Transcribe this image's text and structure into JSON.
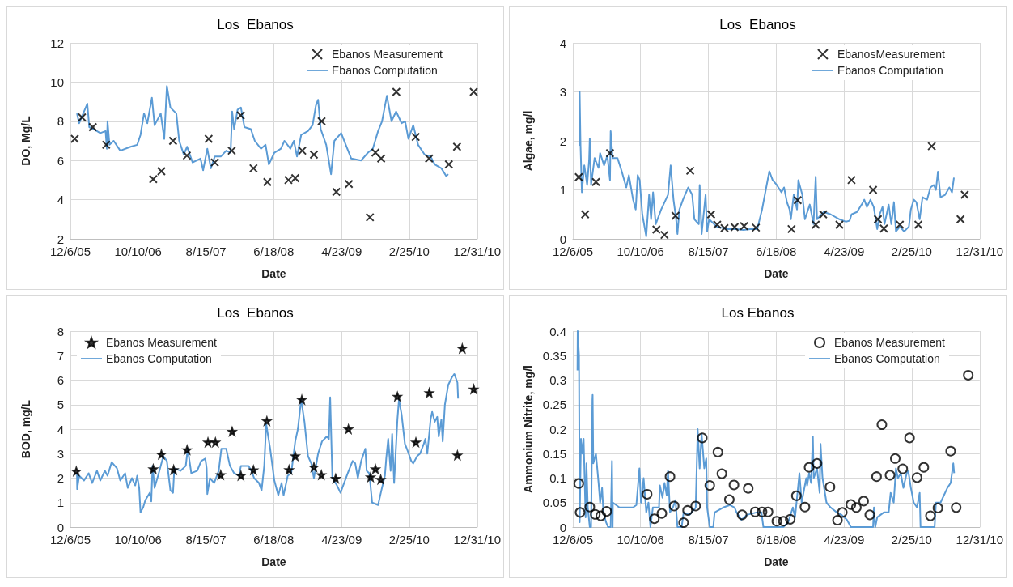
{
  "chart_data": [
    {
      "type": "line",
      "title": "Los  Ebanos",
      "xlabel": "Date",
      "ylabel": "DO, Mg/L",
      "xlim": [
        "2005-12-06",
        "2010-12-31"
      ],
      "xticks": [
        {
          "value": "2005-12-06",
          "label": "12/6/05"
        },
        {
          "value": "2006-10-10",
          "label": "10/10/06"
        },
        {
          "value": "2007-08-15",
          "label": "8/15/07"
        },
        {
          "value": "2008-06-18",
          "label": "6/18/08"
        },
        {
          "value": "2009-04-23",
          "label": "4/23/09"
        },
        {
          "value": "2010-02-25",
          "label": "2/25/10"
        },
        {
          "value": "2010-12-31",
          "label": "12/31/10"
        }
      ],
      "ylim": [
        2,
        12
      ],
      "yticks": [
        2,
        4,
        6,
        8,
        10,
        12
      ],
      "grid": true,
      "legend": "top right",
      "series": [
        {
          "name": "Ebanos Measurement",
          "type": "scatter",
          "marker": "cross",
          "color": "#000000",
          "x": [
            "2005-12-26",
            "2006-01-28",
            "2006-03-18",
            "2006-05-18",
            "2006-12-18",
            "2007-01-24",
            "2007-03-18",
            "2007-05-20",
            "2007-08-27",
            "2007-09-24",
            "2007-12-10",
            "2008-01-20",
            "2008-03-18",
            "2008-05-20",
            "2008-08-24",
            "2008-09-24",
            "2008-10-26",
            "2008-12-18",
            "2009-01-22",
            "2009-03-30",
            "2009-05-26",
            "2009-08-30",
            "2009-09-24",
            "2009-10-20",
            "2009-12-28",
            "2010-03-26",
            "2010-05-26",
            "2010-08-24",
            "2010-09-30",
            "2010-12-15"
          ],
          "values": [
            7.1,
            8.2,
            7.7,
            6.8,
            5.05,
            5.45,
            7.0,
            6.25,
            7.1,
            5.9,
            6.5,
            8.3,
            5.6,
            4.9,
            5.0,
            5.1,
            6.5,
            6.3,
            8.0,
            4.4,
            4.8,
            3.1,
            6.4,
            6.1,
            9.5,
            7.2,
            6.1,
            5.8,
            6.7,
            9.5
          ]
        },
        {
          "name": "Ebanos Computation",
          "type": "line",
          "marker": "none",
          "color": "#5b9bd5",
          "x": [
            "2006-01-05",
            "2006-01-15",
            "2006-02-21",
            "2006-03-02",
            "2006-03-21",
            "2006-04-21",
            "2006-05-15",
            "2006-05-21",
            "2006-05-24",
            "2006-06-02",
            "2006-06-21",
            "2006-07-21",
            "2006-09-06",
            "2006-10-06",
            "2006-10-21",
            "2006-11-06",
            "2006-11-21",
            "2006-12-12",
            "2006-12-24",
            "2007-01-21",
            "2007-02-06",
            "2007-02-18",
            "2007-03-06",
            "2007-04-02",
            "2007-04-15",
            "2007-05-06",
            "2007-05-21",
            "2007-06-15",
            "2007-07-21",
            "2007-08-02",
            "2007-08-21",
            "2007-09-06",
            "2007-09-24",
            "2007-10-21",
            "2007-11-15",
            "2007-12-05",
            "2007-12-12",
            "2007-12-21",
            "2008-01-06",
            "2008-01-21",
            "2008-02-06",
            "2008-03-06",
            "2008-03-24",
            "2008-04-21",
            "2008-05-12",
            "2008-05-27",
            "2008-06-21",
            "2008-07-21",
            "2008-08-06",
            "2008-09-02",
            "2008-09-18",
            "2008-10-02",
            "2008-10-21",
            "2008-11-21",
            "2008-12-12",
            "2008-12-27",
            "2009-01-06",
            "2009-01-18",
            "2009-02-12",
            "2009-03-06",
            "2009-03-21",
            "2009-04-21",
            "2009-05-12",
            "2009-06-06",
            "2009-07-21",
            "2009-08-21",
            "2009-09-12",
            "2009-10-06",
            "2009-10-24",
            "2009-11-15",
            "2009-12-06",
            "2009-12-27",
            "2010-01-21",
            "2010-02-06",
            "2010-02-21",
            "2010-03-15",
            "2010-04-06",
            "2010-05-06",
            "2010-06-02",
            "2010-06-21",
            "2010-07-21",
            "2010-08-12",
            "2010-08-21"
          ],
          "values": [
            8.4,
            7.9,
            8.9,
            7.7,
            7.6,
            7.4,
            7.5,
            6.6,
            8.0,
            6.8,
            7.0,
            6.5,
            6.7,
            6.8,
            7.3,
            8.4,
            7.9,
            9.2,
            7.8,
            8.4,
            7.1,
            9.8,
            8.7,
            8.4,
            7.0,
            6.3,
            6.7,
            5.9,
            6.1,
            5.5,
            6.6,
            5.6,
            6.2,
            6.2,
            6.5,
            6.4,
            8.5,
            7.6,
            8.6,
            8.7,
            7.7,
            7.6,
            7.0,
            6.6,
            6.8,
            5.8,
            6.4,
            6.6,
            7.0,
            6.6,
            7.0,
            6.2,
            7.3,
            7.5,
            7.8,
            8.8,
            9.1,
            7.6,
            6.8,
            5.3,
            7.0,
            7.4,
            6.8,
            6.1,
            6.0,
            6.4,
            6.6,
            7.5,
            8.0,
            9.3,
            8.0,
            8.5,
            7.9,
            8.0,
            7.1,
            7.8,
            6.8,
            6.3,
            6.2,
            5.8,
            5.6,
            5.2,
            5.3
          ]
        }
      ]
    },
    {
      "type": "line",
      "title": "Los  Ebanos",
      "xlabel": "Date",
      "ylabel": "Algae, mg/l",
      "xlim": [
        "2005-12-06",
        "2010-12-31"
      ],
      "xticks": [
        {
          "value": "2005-12-06",
          "label": "12/6/05"
        },
        {
          "value": "2006-10-10",
          "label": "10/10/06"
        },
        {
          "value": "2007-08-15",
          "label": "8/15/07"
        },
        {
          "value": "2008-06-18",
          "label": "6/18/08"
        },
        {
          "value": "2009-04-23",
          "label": "4/23/09"
        },
        {
          "value": "2010-02-25",
          "label": "2/25/10"
        },
        {
          "value": "2010-12-31",
          "label": "12/31/10"
        }
      ],
      "ylim": [
        0,
        4
      ],
      "yticks": [
        0,
        1,
        2,
        3,
        4
      ],
      "grid": true,
      "legend": "top right",
      "series": [
        {
          "name": "EbanosMeasurement",
          "type": "scatter",
          "marker": "cross",
          "color": "#000000",
          "x": [
            "2006-01-02",
            "2006-01-31",
            "2006-03-21",
            "2006-05-24",
            "2006-12-21",
            "2007-01-27",
            "2007-03-18",
            "2007-05-24",
            "2007-08-27",
            "2007-09-24",
            "2007-10-27",
            "2007-12-12",
            "2008-01-24",
            "2008-03-18",
            "2008-08-27",
            "2008-09-24",
            "2008-12-15",
            "2009-01-18",
            "2009-04-02",
            "2009-05-27",
            "2009-09-02",
            "2009-09-24",
            "2009-10-21",
            "2010-01-02",
            "2010-03-27",
            "2010-05-27",
            "2010-10-05",
            "2010-10-24"
          ],
          "values": [
            1.26,
            0.5,
            1.16,
            1.75,
            0.19,
            0.08,
            0.47,
            1.39,
            0.5,
            0.29,
            0.22,
            0.24,
            0.26,
            0.23,
            0.2,
            0.79,
            0.29,
            0.5,
            0.29,
            1.2,
            1.0,
            0.4,
            0.21,
            0.29,
            0.29,
            1.89,
            0.4,
            0.9
          ]
        },
        {
          "name": "Ebanos Computation",
          "type": "line",
          "marker": "none",
          "color": "#5b9bd5",
          "x": [
            "2006-01-05",
            "2006-01-06",
            "2006-01-10",
            "2006-01-16",
            "2006-01-27",
            "2006-02-09",
            "2006-02-18",
            "2006-02-21",
            "2006-02-27",
            "2006-03-15",
            "2006-04-02",
            "2006-04-09",
            "2006-04-27",
            "2006-05-12",
            "2006-05-24",
            "2006-05-27",
            "2006-06-05",
            "2006-06-27",
            "2006-07-15",
            "2006-08-06",
            "2006-08-18",
            "2006-09-06",
            "2006-09-18",
            "2006-09-27",
            "2006-10-06",
            "2006-10-18",
            "2006-11-05",
            "2006-11-18",
            "2006-11-27",
            "2006-12-06",
            "2006-12-18",
            "2007-01-12",
            "2007-02-12",
            "2007-02-24",
            "2007-03-09",
            "2007-03-21",
            "2007-03-27",
            "2007-04-05",
            "2007-04-21",
            "2007-05-15",
            "2007-06-02",
            "2007-06-12",
            "2007-07-02",
            "2007-07-06",
            "2007-07-15",
            "2007-08-02",
            "2007-08-09",
            "2007-08-18",
            "2007-09-21",
            "2007-11-06",
            "2007-12-21",
            "2008-01-21",
            "2008-02-21",
            "2008-03-24",
            "2008-04-15",
            "2008-05-06",
            "2008-05-18",
            "2008-06-02",
            "2008-06-21",
            "2008-07-12",
            "2008-07-24",
            "2008-08-06",
            "2008-08-18",
            "2008-08-24",
            "2008-09-06",
            "2008-09-21",
            "2008-09-27",
            "2008-10-15",
            "2008-10-27",
            "2008-11-18",
            "2008-12-05",
            "2008-12-15",
            "2008-12-21",
            "2009-01-21",
            "2009-02-21",
            "2009-04-02",
            "2009-05-02",
            "2009-05-18",
            "2009-05-27",
            "2009-06-21",
            "2009-07-12",
            "2009-07-24",
            "2009-08-05",
            "2009-08-21",
            "2009-09-05",
            "2009-09-21",
            "2009-10-02",
            "2009-10-15",
            "2009-10-24",
            "2009-11-12",
            "2009-11-24",
            "2009-12-06",
            "2009-12-15",
            "2010-01-02",
            "2010-01-21",
            "2010-02-12",
            "2010-02-21",
            "2010-03-06",
            "2010-03-18",
            "2010-04-02",
            "2010-04-15",
            "2010-05-06",
            "2010-05-21",
            "2010-06-05",
            "2010-06-15",
            "2010-06-24",
            "2010-07-06",
            "2010-07-27",
            "2010-08-15",
            "2010-08-27",
            "2010-09-05"
          ],
          "values": [
            1.9,
            3.0,
            1.9,
            0.95,
            1.5,
            1.1,
            1.6,
            2.05,
            1.1,
            1.65,
            1.45,
            1.75,
            1.5,
            1.7,
            1.2,
            2.2,
            1.65,
            1.65,
            1.4,
            1.05,
            1.3,
            0.8,
            0.6,
            1.3,
            1.2,
            0.5,
            0.05,
            0.9,
            0.4,
            0.95,
            0.3,
            0.6,
            0.9,
            1.5,
            0.8,
            0.4,
            0.1,
            0.6,
            0.8,
            1.05,
            0.9,
            0.4,
            0.3,
            1.1,
            0.1,
            0.9,
            0.15,
            0.4,
            0.25,
            0.2,
            0.2,
            0.18,
            0.2,
            0.2,
            0.6,
            1.1,
            1.38,
            1.2,
            1.1,
            0.95,
            1.05,
            0.75,
            0.6,
            0.4,
            0.9,
            0.6,
            1.2,
            0.9,
            0.4,
            0.7,
            0.3,
            1.27,
            0.4,
            0.55,
            0.5,
            0.4,
            0.35,
            0.37,
            0.5,
            0.55,
            0.7,
            0.8,
            0.65,
            0.8,
            0.65,
            0.2,
            0.5,
            0.65,
            0.3,
            0.7,
            0.3,
            0.75,
            0.15,
            0.25,
            0.15,
            0.25,
            0.6,
            0.8,
            0.75,
            0.4,
            0.85,
            0.8,
            1.05,
            1.1,
            1.0,
            1.37,
            0.85,
            0.9,
            1.05,
            0.95,
            1.25
          ]
        }
      ]
    },
    {
      "type": "line",
      "title": "Los  Ebanos",
      "xlabel": "Date",
      "ylabel": "BOD, mg/L",
      "xlim": [
        "2005-12-06",
        "2010-12-31"
      ],
      "xticks": [
        {
          "value": "2005-12-06",
          "label": "12/6/05"
        },
        {
          "value": "2006-10-10",
          "label": "10/10/06"
        },
        {
          "value": "2007-08-15",
          "label": "8/15/07"
        },
        {
          "value": "2008-06-18",
          "label": "6/18/08"
        },
        {
          "value": "2009-04-23",
          "label": "4/23/09"
        },
        {
          "value": "2010-02-25",
          "label": "2/25/10"
        },
        {
          "value": "2010-12-31",
          "label": "12/31/10"
        }
      ],
      "ylim": [
        0,
        8
      ],
      "yticks": [
        0,
        1,
        2,
        3,
        4,
        5,
        6,
        7,
        8
      ],
      "grid": true,
      "legend": "top left",
      "series": [
        {
          "name": "Ebanos Measurement",
          "type": "scatter",
          "marker": "star",
          "color": "#000000",
          "x": [
            "2006-01-02",
            "2006-12-18",
            "2007-01-24",
            "2007-03-21",
            "2007-05-21",
            "2007-08-24",
            "2007-09-27",
            "2007-10-21",
            "2007-12-12",
            "2008-01-21",
            "2008-03-18",
            "2008-05-18",
            "2008-08-27",
            "2008-09-24",
            "2008-10-24",
            "2008-12-18",
            "2009-01-21",
            "2009-03-27",
            "2009-05-24",
            "2009-09-02",
            "2009-09-24",
            "2009-10-18",
            "2010-01-02",
            "2010-03-27",
            "2010-05-27",
            "2010-10-02",
            "2010-10-24",
            "2010-12-15"
          ],
          "values": [
            2.28,
            2.37,
            2.97,
            2.34,
            3.15,
            3.46,
            3.46,
            2.13,
            3.9,
            2.1,
            2.33,
            4.33,
            2.34,
            2.9,
            5.2,
            2.45,
            2.13,
            1.98,
            4.0,
            2.04,
            2.37,
            1.94,
            5.33,
            3.46,
            5.48,
            2.93,
            7.29,
            5.63
          ]
        },
        {
          "name": "Ebanos Computation",
          "type": "line",
          "marker": "none",
          "color": "#5b9bd5",
          "x": [
            "2006-01-05",
            "2006-01-06",
            "2006-01-15",
            "2006-02-06",
            "2006-02-27",
            "2006-03-15",
            "2006-04-06",
            "2006-04-21",
            "2006-05-12",
            "2006-05-24",
            "2006-06-12",
            "2006-07-06",
            "2006-07-21",
            "2006-08-12",
            "2006-08-24",
            "2006-09-12",
            "2006-09-27",
            "2006-10-06",
            "2006-10-15",
            "2006-10-21",
            "2006-11-02",
            "2006-11-12",
            "2006-12-02",
            "2006-12-09",
            "2006-12-15",
            "2006-12-24",
            "2007-01-12",
            "2007-02-02",
            "2007-02-18",
            "2007-03-06",
            "2007-03-18",
            "2007-03-24",
            "2007-04-21",
            "2007-05-15",
            "2007-05-24",
            "2007-06-09",
            "2007-07-06",
            "2007-07-24",
            "2007-08-12",
            "2007-08-18",
            "2007-08-21",
            "2007-09-02",
            "2007-09-21",
            "2007-10-12",
            "2007-10-24",
            "2007-11-15",
            "2007-12-02",
            "2007-12-21",
            "2008-01-12",
            "2008-01-21",
            "2008-02-24",
            "2008-03-09",
            "2008-03-21",
            "2008-04-12",
            "2008-04-24",
            "2008-05-06",
            "2008-05-15",
            "2008-06-02",
            "2008-06-21",
            "2008-07-09",
            "2008-07-24",
            "2008-08-02",
            "2008-08-21",
            "2008-09-06",
            "2008-09-24",
            "2008-10-06",
            "2008-10-21",
            "2008-11-05",
            "2008-11-21",
            "2008-12-06",
            "2008-12-18",
            "2009-01-06",
            "2009-01-24",
            "2009-02-15",
            "2009-02-24",
            "2009-03-02",
            "2009-03-12",
            "2009-04-02",
            "2009-04-18",
            "2009-05-21",
            "2009-06-12",
            "2009-06-24",
            "2009-07-06",
            "2009-07-21",
            "2009-08-09",
            "2009-08-15",
            "2009-08-27",
            "2009-09-09",
            "2009-10-06",
            "2009-10-21",
            "2009-11-06",
            "2009-11-12",
            "2009-11-21",
            "2009-12-02",
            "2009-12-09",
            "2009-12-18",
            "2010-01-02",
            "2010-01-09",
            "2010-01-21",
            "2010-02-05",
            "2010-02-18",
            "2010-03-06",
            "2010-03-15",
            "2010-04-02",
            "2010-04-15",
            "2010-05-02",
            "2010-05-09",
            "2010-05-18",
            "2010-06-02",
            "2010-06-09",
            "2010-06-21",
            "2010-07-02",
            "2010-07-09",
            "2010-07-21",
            "2010-07-27",
            "2010-08-06",
            "2010-08-21",
            "2010-09-06",
            "2010-09-18",
            "2010-10-02",
            "2010-10-05"
          ],
          "values": [
            2.2,
            1.55,
            2.1,
            1.9,
            2.2,
            1.8,
            2.3,
            1.9,
            2.3,
            2.1,
            2.65,
            2.4,
            1.9,
            2.2,
            1.6,
            2.0,
            1.7,
            2.1,
            1.6,
            0.6,
            0.8,
            1.1,
            1.4,
            1.05,
            2.5,
            1.6,
            2.2,
            2.9,
            2.7,
            1.5,
            1.4,
            2.4,
            2.3,
            2.5,
            3.2,
            2.2,
            2.3,
            2.7,
            2.8,
            2.4,
            1.35,
            2.0,
            1.8,
            2.3,
            3.2,
            3.2,
            2.5,
            2.2,
            2.1,
            2.5,
            2.5,
            2.3,
            2.0,
            1.8,
            1.5,
            2.5,
            4.2,
            3.2,
            1.9,
            1.3,
            1.8,
            1.3,
            2.1,
            2.2,
            3.5,
            4.0,
            5.2,
            4.3,
            2.9,
            2.6,
            2.0,
            3.0,
            3.5,
            3.7,
            3.6,
            5.3,
            2.0,
            1.7,
            1.4,
            2.2,
            2.7,
            2.6,
            2.0,
            2.7,
            3.2,
            2.3,
            2.2,
            1.0,
            0.9,
            1.5,
            2.1,
            2.8,
            3.6,
            2.3,
            3.8,
            1.8,
            4.4,
            5.2,
            4.6,
            3.4,
            3.1,
            2.7,
            2.6,
            2.9,
            3.0,
            3.4,
            3.6,
            3.0,
            4.4,
            4.7,
            4.3,
            4.5,
            3.7,
            4.4,
            3.5,
            5.0,
            5.8,
            6.1,
            6.25,
            5.9,
            5.25
          ]
        }
      ]
    },
    {
      "type": "line",
      "title": "Los Ebanos",
      "xlabel": "Date",
      "ylabel": "Ammonium Nitrite, mg/l",
      "xlim": [
        "2005-12-06",
        "2010-12-31"
      ],
      "xticks": [
        {
          "value": "2005-12-06",
          "label": "12/6/05"
        },
        {
          "value": "2006-10-10",
          "label": "10/10/06"
        },
        {
          "value": "2007-08-15",
          "label": "8/15/07"
        },
        {
          "value": "2008-06-18",
          "label": "6/18/08"
        },
        {
          "value": "2009-04-23",
          "label": "4/23/09"
        },
        {
          "value": "2010-02-25",
          "label": "2/25/10"
        },
        {
          "value": "2010-12-31",
          "label": "12/31/10"
        }
      ],
      "ylim": [
        0,
        0.4
      ],
      "yticks": [
        0,
        0.05,
        0.1,
        0.15,
        0.2,
        0.25,
        0.3,
        0.35,
        0.4
      ],
      "grid": true,
      "legend": "top right",
      "series": [
        {
          "name": "Ebanos Measurement",
          "type": "scatter",
          "marker": "circle",
          "color": "#000000",
          "x": [
            "2006-01-02",
            "2006-01-08",
            "2006-02-21",
            "2006-03-18",
            "2006-04-12",
            "2006-05-09",
            "2006-11-09",
            "2006-12-12",
            "2007-01-15",
            "2007-02-21",
            "2007-03-12",
            "2007-04-24",
            "2007-05-12",
            "2007-06-18",
            "2007-07-18",
            "2007-08-21",
            "2007-09-27",
            "2007-10-15",
            "2007-11-18",
            "2007-12-09",
            "2008-01-15",
            "2008-02-12",
            "2008-03-15",
            "2008-04-15",
            "2008-05-12",
            "2008-06-21",
            "2008-07-21",
            "2008-08-21",
            "2008-09-18",
            "2008-10-27",
            "2008-11-15",
            "2008-12-21",
            "2009-02-18",
            "2009-03-24",
            "2009-04-15",
            "2009-05-24",
            "2009-06-18",
            "2009-07-21",
            "2009-08-18",
            "2009-09-18",
            "2009-10-12",
            "2009-11-18",
            "2009-12-12",
            "2010-01-15",
            "2010-02-15",
            "2010-03-21",
            "2010-04-21",
            "2010-05-21",
            "2010-06-24",
            "2010-08-21",
            "2010-09-15",
            "2010-11-09"
          ],
          "values": [
            0.089,
            0.03,
            0.041,
            0.026,
            0.023,
            0.032,
            0.067,
            0.017,
            0.028,
            0.103,
            0.043,
            0.009,
            0.034,
            0.043,
            0.182,
            0.085,
            0.153,
            0.109,
            0.056,
            0.086,
            0.025,
            0.079,
            0.031,
            0.031,
            0.031,
            0.012,
            0.012,
            0.016,
            0.064,
            0.041,
            0.122,
            0.13,
            0.082,
            0.014,
            0.03,
            0.046,
            0.04,
            0.053,
            0.025,
            0.103,
            0.209,
            0.106,
            0.14,
            0.119,
            0.182,
            0.101,
            0.122,
            0.023,
            0.039,
            0.155,
            0.04,
            0.31
          ]
        },
        {
          "name": "Ebanos Computation",
          "type": "line",
          "marker": "none",
          "color": "#5b9bd5",
          "x": [
            "2005-12-27",
            "2005-12-28",
            "2006-01-03",
            "2006-01-06",
            "2006-01-12",
            "2006-01-18",
            "2006-01-24",
            "2006-02-02",
            "2006-02-06",
            "2006-02-12",
            "2006-02-21",
            "2006-02-27",
            "2006-03-05",
            "2006-03-06",
            "2006-03-09",
            "2006-03-21",
            "2006-04-02",
            "2006-04-09",
            "2006-04-18",
            "2006-04-24",
            "2006-05-06",
            "2006-05-15",
            "2006-05-27",
            "2006-06-02",
            "2006-06-05",
            "2006-06-06",
            "2006-07-06",
            "2006-08-06",
            "2006-09-06",
            "2006-09-21",
            "2006-10-05",
            "2006-10-12",
            "2006-10-18",
            "2006-10-24",
            "2006-11-05",
            "2006-11-15",
            "2006-11-24",
            "2006-12-05",
            "2007-01-02",
            "2007-01-06",
            "2007-01-18",
            "2007-01-27",
            "2007-02-06",
            "2007-02-12",
            "2007-02-21",
            "2007-03-06",
            "2007-03-18",
            "2007-03-27",
            "2007-04-15",
            "2007-04-24",
            "2007-05-21",
            "2007-06-18",
            "2007-06-27",
            "2007-07-06",
            "2007-07-15",
            "2007-07-27",
            "2007-08-05",
            "2007-08-09",
            "2007-08-21",
            "2007-09-06",
            "2007-09-12",
            "2007-10-21",
            "2007-11-21",
            "2007-12-12",
            "2007-12-21",
            "2008-01-12",
            "2008-02-06",
            "2008-03-21",
            "2008-04-12",
            "2008-04-21",
            "2008-06-06",
            "2008-07-21",
            "2008-08-12",
            "2008-09-02",
            "2008-09-12",
            "2008-10-02",
            "2008-10-12",
            "2008-11-02",
            "2008-11-06",
            "2008-11-15",
            "2008-11-24",
            "2008-12-02",
            "2008-12-06",
            "2008-12-21",
            "2009-01-02",
            "2009-01-06",
            "2009-01-15",
            "2009-02-02",
            "2009-02-21",
            "2009-03-21",
            "2009-04-12",
            "2009-05-06",
            "2009-05-24",
            "2009-07-06",
            "2009-09-02",
            "2009-09-06",
            "2009-09-12",
            "2009-09-21",
            "2009-10-21",
            "2009-11-12",
            "2009-11-21",
            "2009-12-05",
            "2009-12-15",
            "2009-12-24",
            "2010-01-06",
            "2010-01-18",
            "2010-02-02",
            "2010-02-09",
            "2010-02-21",
            "2010-03-06",
            "2010-03-21",
            "2010-04-02",
            "2010-04-06",
            "2010-05-21",
            "2010-06-09",
            "2010-06-15",
            "2010-07-06",
            "2010-08-06",
            "2010-08-21",
            "2010-09-02",
            "2010-09-06"
          ],
          "values": [
            0.32,
            0.4,
            0.35,
            0.01,
            0.18,
            0.15,
            0.18,
            0.02,
            0.13,
            0.04,
            0,
            0,
            0.26,
            0.27,
            0.13,
            0.15,
            0.09,
            0.05,
            0.08,
            0.03,
            0.01,
            0,
            0,
            0.135,
            0,
            0.05,
            0.04,
            0.04,
            0.04,
            0.045,
            0.12,
            0.05,
            0.07,
            0.1,
            0.03,
            0.05,
            0,
            0.04,
            0.04,
            0.085,
            0.06,
            0.09,
            0.065,
            0.115,
            0.03,
            0.04,
            0.055,
            0,
            0,
            0.03,
            0.025,
            0.04,
            0.2,
            0.12,
            0.19,
            0.12,
            0.14,
            0.04,
            0,
            0,
            0.03,
            0.04,
            0.045,
            0.04,
            0.03,
            0.015,
            0.025,
            0.03,
            0.03,
            0,
            0,
            0,
            0.01,
            0.04,
            0.02,
            0.11,
            0.05,
            0.1,
            0.085,
            0.11,
            0.09,
            0.185,
            0.1,
            0.12,
            0.07,
            0.17,
            0.1,
            0.05,
            0.04,
            0.03,
            0.025,
            0.015,
            0,
            0,
            0,
            0.04,
            0,
            0.02,
            0.03,
            0.03,
            0.07,
            0.05,
            0.12,
            0.1,
            0.11,
            0.08,
            0.11,
            0.115,
            0.08,
            0.05,
            0.04,
            0.07,
            0,
            0,
            0,
            0.05,
            0.05,
            0.08,
            0.09,
            0.13,
            0.11
          ]
        }
      ]
    }
  ]
}
